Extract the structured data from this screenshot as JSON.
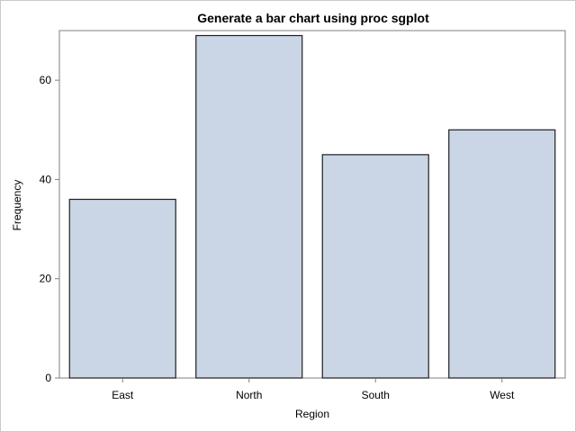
{
  "chart_data": {
    "type": "bar",
    "title": "Generate a bar chart using proc sgplot",
    "xlabel": "Region",
    "ylabel": "Frequency",
    "categories": [
      "East",
      "North",
      "South",
      "West"
    ],
    "values": [
      36,
      69,
      45,
      50
    ],
    "ylim": [
      0,
      70
    ],
    "yticks": [
      0,
      20,
      40,
      60
    ],
    "grid": false,
    "legend": "none",
    "bar_fill": "#cad5e5",
    "bar_stroke": "#1f1f1f",
    "axis_color": "#7f7f7f"
  }
}
